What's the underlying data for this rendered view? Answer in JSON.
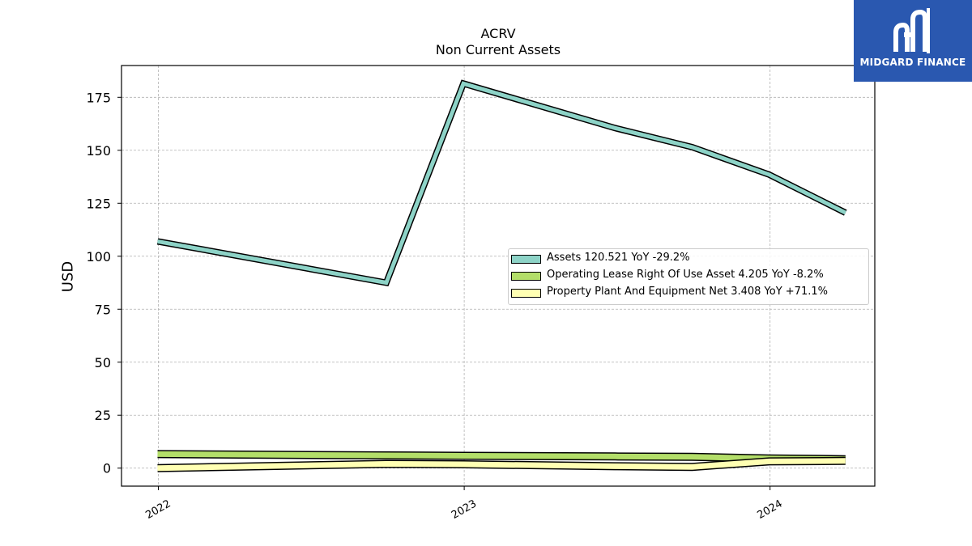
{
  "header": {
    "title": "ACRV",
    "subtitle": "Non Current  Assets"
  },
  "logo": {
    "text": "MIDGARD FINANCE",
    "background": "#2a58b0"
  },
  "chart_data": {
    "type": "area",
    "title": "ACRV",
    "subtitle": "Non Current  Assets",
    "xlabel": "",
    "ylabel": "USD",
    "ylim": [
      -8.5,
      190
    ],
    "yticks": [
      0,
      25,
      50,
      75,
      100,
      125,
      150,
      175
    ],
    "ytick_labels": [
      "0",
      "25",
      "50",
      "75",
      "100",
      "125",
      "150",
      "175"
    ],
    "xticks": [
      "2022-01-01",
      "2023-01-01",
      "2024-01-01"
    ],
    "xtick_labels": [
      "2022",
      "2023",
      "2024"
    ],
    "xlim": [
      "2021-11-18",
      "2024-05-05"
    ],
    "grid": true,
    "legend_position": "center-right",
    "x": [
      "2021-12-31",
      "2022-09-30",
      "2022-12-31",
      "2023-06-30",
      "2023-09-30",
      "2023-12-31",
      "2024-03-31"
    ],
    "series": [
      {
        "name": "Assets",
        "legend_label": "Assets  120.521 YoY -29.2%",
        "color": "#8dd3c7",
        "values": [
          107.0,
          87.5,
          181.5,
          160.5,
          151.5,
          138.5,
          120.521
        ]
      },
      {
        "name": "Operating Lease Right Of Use Asset",
        "legend_label": "Operating Lease Right Of Use Asset  4.205 YoY -8.2%",
        "color": "#b3de69",
        "values": [
          6.6,
          6.0,
          5.8,
          5.5,
          5.3,
          4.6,
          4.205
        ]
      },
      {
        "name": "Property Plant And Equipment Net",
        "legend_label": "Property Plant And Equipment Net  3.408 YoY +71.1%",
        "color": "#ffffb3",
        "values": [
          0.0,
          2.0,
          1.8,
          0.9,
          0.6,
          3.2,
          3.408
        ]
      }
    ]
  }
}
